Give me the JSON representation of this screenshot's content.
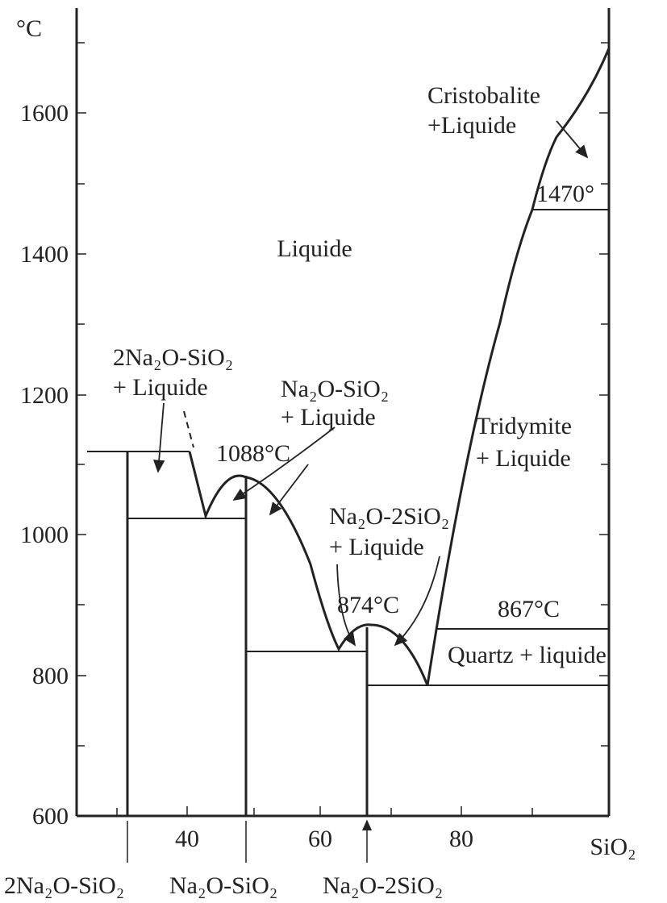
{
  "axes": {
    "y_unit": "°C",
    "y_ticks": [
      600,
      800,
      1000,
      1200,
      1400,
      1600
    ],
    "x_ticks": [
      40,
      60,
      80
    ],
    "x_label": "SiO₂"
  },
  "regions": {
    "liquide": "Liquide",
    "cristobalite": [
      "Cristobalite",
      "+Liquide"
    ],
    "na4": [
      "2Na₂O-SiO₂",
      "+ Liquide"
    ],
    "na2": [
      "Na₂O-SiO₂",
      "+ Liquide"
    ],
    "tridymite": [
      "Tridymite",
      "+ Liquide"
    ],
    "na1": [
      "Na₂O-2SiO₂",
      "+ Liquide"
    ],
    "quartz": "Quartz + liquide"
  },
  "temperatures": [
    "1470°",
    "1088°C",
    "874°C",
    "867°C"
  ],
  "compounds": [
    "2Na₂O-SiO₂",
    "Na₂O-SiO₂",
    "Na₂O-2SiO₂"
  ]
}
